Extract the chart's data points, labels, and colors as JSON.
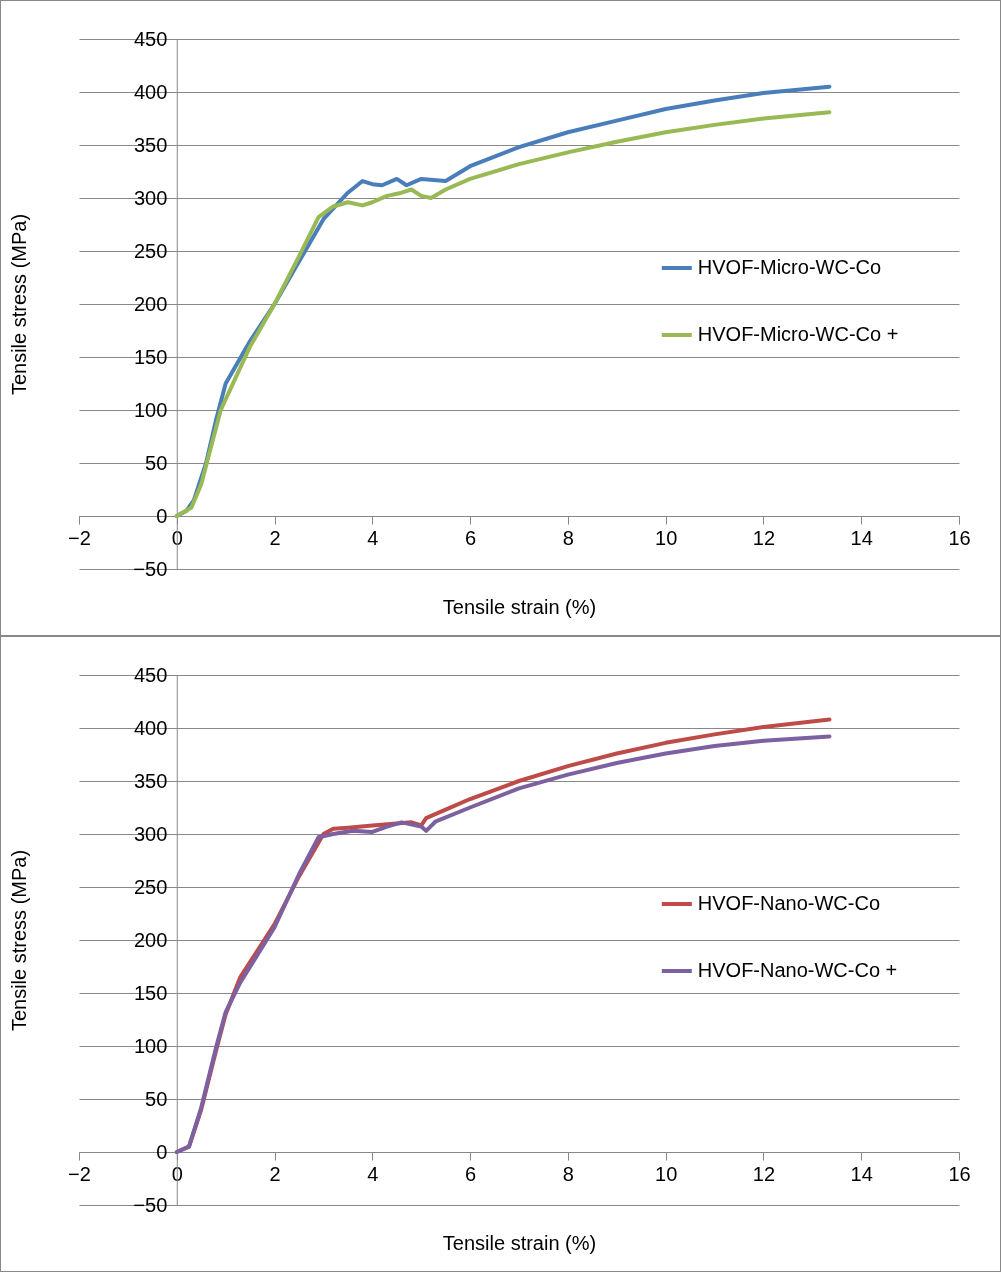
{
  "chart_data": [
    {
      "type": "line",
      "xlabel": "Tensile strain (%)",
      "ylabel": "Tensile stress (MPa)",
      "xlim": [
        -2,
        16
      ],
      "xticks": [
        -2,
        0,
        2,
        4,
        6,
        8,
        10,
        12,
        14,
        16
      ],
      "ylim": [
        -50,
        450
      ],
      "yticks": [
        -50,
        0,
        50,
        100,
        150,
        200,
        250,
        300,
        350,
        400,
        450
      ],
      "grid": "y",
      "legend": "right",
      "line_style": "solid",
      "marker": "none",
      "series": [
        {
          "name": "HVOF-Micro-WC-Co",
          "color": "#4a7ebb",
          "x": [
            0,
            0.2,
            0.35,
            0.6,
            0.8,
            1,
            1.5,
            2,
            2.5,
            3,
            3.5,
            3.8,
            4,
            4.2,
            4.5,
            4.7,
            5,
            5.5,
            6,
            7,
            8,
            9,
            10,
            11,
            12,
            13.35
          ],
          "values": [
            0,
            5,
            15,
            50,
            90,
            125,
            165,
            200,
            240,
            280,
            305,
            316,
            313,
            312,
            318,
            312,
            318,
            316,
            330,
            348,
            362,
            373,
            384,
            392,
            399,
            405
          ]
        },
        {
          "name": "HVOF-Micro-WC-Co +",
          "color": "#98b954",
          "x": [
            0,
            0.3,
            0.5,
            0.7,
            0.9,
            1.2,
            1.5,
            2,
            2.5,
            2.9,
            3.2,
            3.5,
            3.8,
            4,
            4.3,
            4.6,
            4.8,
            5,
            5.2,
            5.5,
            6,
            7,
            8,
            9,
            10,
            11,
            12,
            13.35
          ],
          "values": [
            0,
            8,
            30,
            65,
            100,
            130,
            160,
            200,
            245,
            282,
            292,
            296,
            293,
            296,
            302,
            305,
            308,
            302,
            300,
            308,
            318,
            332,
            343,
            353,
            362,
            369,
            375,
            381
          ]
        }
      ]
    },
    {
      "type": "line",
      "xlabel": "Tensile strain (%)",
      "ylabel": "Tensile stress (MPa)",
      "xlim": [
        -2,
        16
      ],
      "xticks": [
        -2,
        0,
        2,
        4,
        6,
        8,
        10,
        12,
        14,
        16
      ],
      "ylim": [
        -50,
        450
      ],
      "yticks": [
        -50,
        0,
        50,
        100,
        150,
        200,
        250,
        300,
        350,
        400,
        450
      ],
      "grid": "y",
      "legend": "right",
      "line_style": "solid",
      "marker": "none",
      "series": [
        {
          "name": "HVOF-Nano-WC-Co",
          "color": "#be4b48",
          "x": [
            0,
            0.25,
            0.5,
            0.8,
            1,
            1.3,
            2,
            2.5,
            3,
            3.2,
            3.5,
            4,
            4.5,
            4.8,
            5,
            5.1,
            5.5,
            6,
            7,
            8,
            9,
            10,
            11,
            12,
            13.35
          ],
          "values": [
            0,
            5,
            40,
            95,
            130,
            165,
            215,
            260,
            300,
            305,
            306,
            308,
            310,
            311,
            308,
            315,
            323,
            333,
            350,
            364,
            376,
            386,
            394,
            401,
            408
          ]
        },
        {
          "name": "HVOF-Nano-WC-Co +",
          "color": "#7d60a0",
          "x": [
            0,
            0.25,
            0.5,
            0.8,
            1,
            1.3,
            2,
            2.5,
            2.9,
            3.2,
            3.6,
            4,
            4.3,
            4.6,
            5,
            5.1,
            5.3,
            6,
            7,
            8,
            9,
            10,
            11,
            12,
            13.35
          ],
          "values": [
            0,
            5,
            42,
            98,
            132,
            160,
            212,
            262,
            297,
            300,
            303,
            302,
            307,
            311,
            307,
            303,
            312,
            325,
            343,
            356,
            367,
            376,
            383,
            388,
            392
          ]
        }
      ]
    }
  ]
}
